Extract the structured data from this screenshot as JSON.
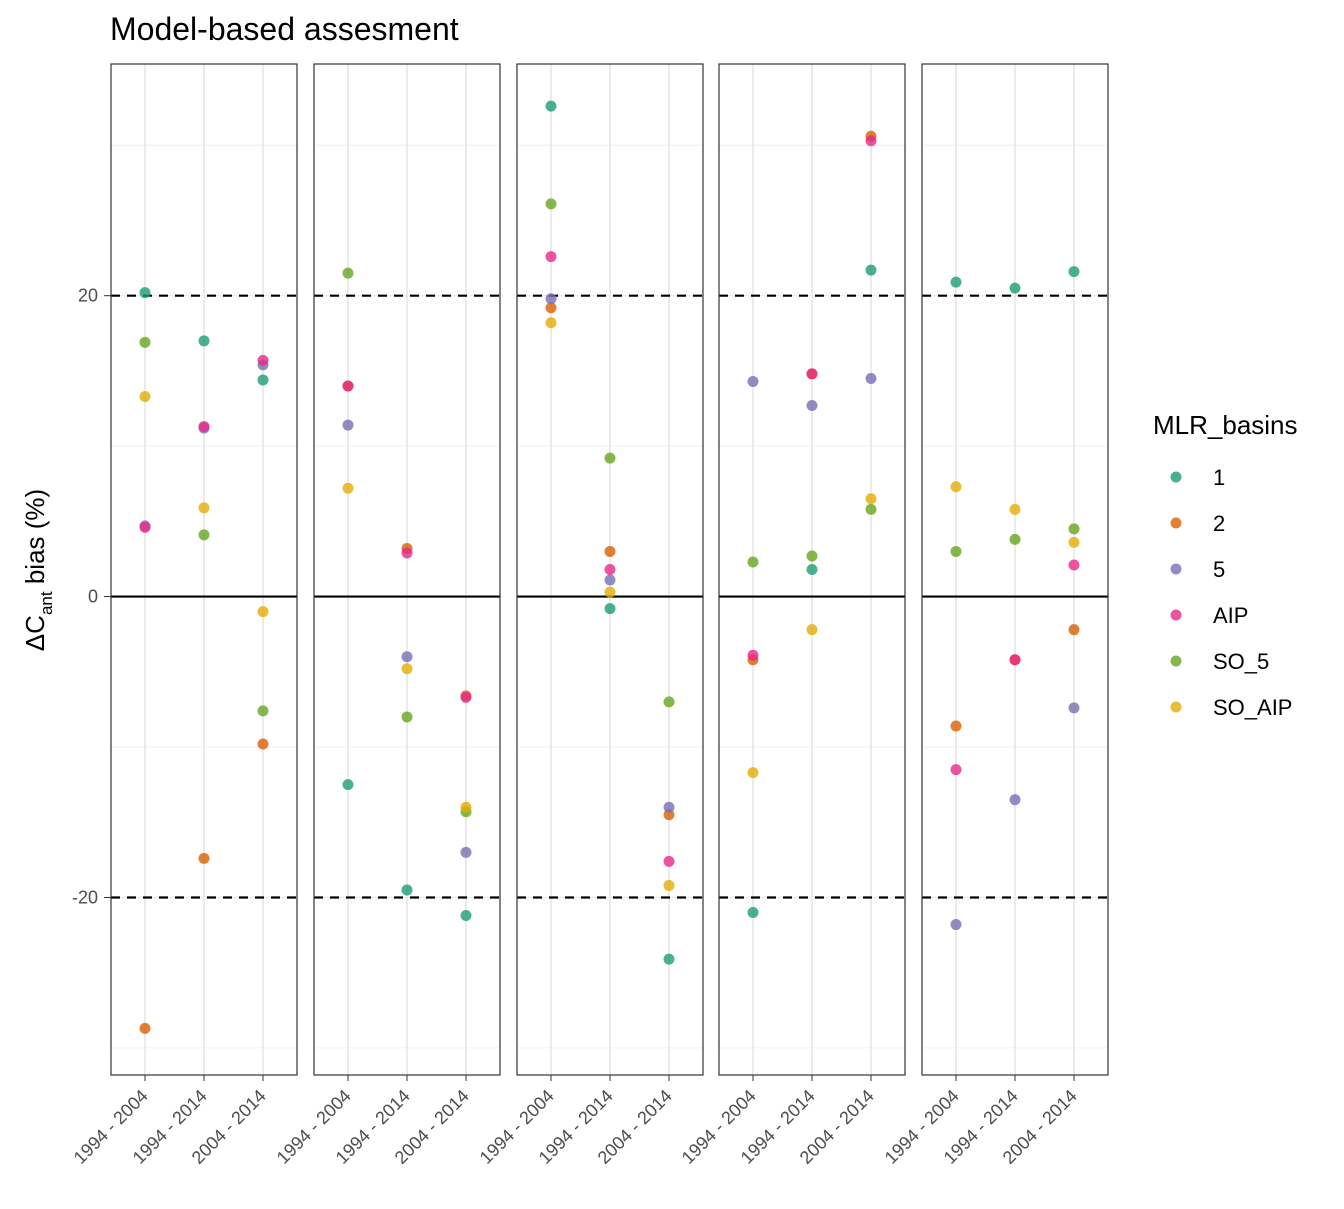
{
  "chart_data": {
    "type": "scatter",
    "title": "Model-based assesment",
    "ylabel": "ΔCant bias (%)",
    "ylabel_parts": {
      "delta": "ΔC",
      "subscript": "ant",
      "rest": " bias (%)"
    },
    "xlabel": "",
    "categories": [
      "1994 - 2004",
      "1994 - 2014",
      "2004 - 2014"
    ],
    "ylim": [
      -31.8,
      35.4
    ],
    "yticks": [
      -20,
      0,
      20
    ],
    "ytick_labels": [
      "-20",
      "0",
      "20"
    ],
    "hlines": [
      {
        "y": 0,
        "style": "solid"
      },
      {
        "y": 20,
        "style": "dashed"
      },
      {
        "y": -20,
        "style": "dashed"
      }
    ],
    "grid": true,
    "legend": {
      "title": "MLR_basins",
      "placement": "right",
      "entries": [
        {
          "name": "1",
          "color": "#1B9E77"
        },
        {
          "name": "2",
          "color": "#D95F02"
        },
        {
          "name": "5",
          "color": "#7570B3"
        },
        {
          "name": "AIP",
          "color": "#E7298A"
        },
        {
          "name": "SO_5",
          "color": "#66A61E"
        },
        {
          "name": "SO_AIP",
          "color": "#E6AB02"
        }
      ]
    },
    "panels": [
      {
        "series": [
          {
            "name": "1",
            "values": [
              20.2,
              17.0,
              14.4
            ]
          },
          {
            "name": "2",
            "values": [
              -28.7,
              -17.4,
              -9.8
            ]
          },
          {
            "name": "5",
            "values": [
              4.7,
              11.2,
              15.4
            ]
          },
          {
            "name": "AIP",
            "values": [
              4.6,
              11.3,
              15.7
            ]
          },
          {
            "name": "SO_5",
            "values": [
              16.9,
              4.1,
              -7.6
            ]
          },
          {
            "name": "SO_AIP",
            "values": [
              13.3,
              5.9,
              -1.0
            ]
          }
        ]
      },
      {
        "series": [
          {
            "name": "1",
            "values": [
              -12.5,
              -19.5,
              -21.2
            ]
          },
          {
            "name": "2",
            "values": [
              14.0,
              3.2,
              -6.6
            ]
          },
          {
            "name": "5",
            "values": [
              11.4,
              -4.0,
              -17.0
            ]
          },
          {
            "name": "AIP",
            "values": [
              14.0,
              2.9,
              -6.7
            ]
          },
          {
            "name": "SO_5",
            "values": [
              21.5,
              -8.0,
              -14.3
            ]
          },
          {
            "name": "SO_AIP",
            "values": [
              7.2,
              -4.8,
              -14.0
            ]
          }
        ]
      },
      {
        "series": [
          {
            "name": "1",
            "values": [
              32.6,
              -0.8,
              -24.1
            ]
          },
          {
            "name": "2",
            "values": [
              19.2,
              3.0,
              -14.5
            ]
          },
          {
            "name": "5",
            "values": [
              19.8,
              1.1,
              -14.0
            ]
          },
          {
            "name": "AIP",
            "values": [
              22.6,
              1.8,
              -17.6
            ]
          },
          {
            "name": "SO_5",
            "values": [
              26.1,
              9.2,
              -7.0
            ]
          },
          {
            "name": "SO_AIP",
            "values": [
              18.2,
              0.3,
              -19.2
            ]
          }
        ]
      },
      {
        "series": [
          {
            "name": "1",
            "values": [
              -21.0,
              1.8,
              21.7
            ]
          },
          {
            "name": "2",
            "values": [
              -4.2,
              14.8,
              30.6
            ]
          },
          {
            "name": "5",
            "values": [
              14.3,
              12.7,
              14.5
            ]
          },
          {
            "name": "AIP",
            "values": [
              -3.9,
              14.8,
              30.3
            ]
          },
          {
            "name": "SO_5",
            "values": [
              2.3,
              2.7,
              5.8
            ]
          },
          {
            "name": "SO_AIP",
            "values": [
              -11.7,
              -2.2,
              6.5
            ]
          }
        ]
      },
      {
        "series": [
          {
            "name": "1",
            "values": [
              20.9,
              20.5,
              21.6
            ]
          },
          {
            "name": "2",
            "values": [
              -8.6,
              -4.2,
              -2.2
            ]
          },
          {
            "name": "5",
            "values": [
              -21.8,
              -13.5,
              -7.4
            ]
          },
          {
            "name": "AIP",
            "values": [
              -11.5,
              -4.2,
              2.1
            ]
          },
          {
            "name": "SO_5",
            "values": [
              3.0,
              3.8,
              4.5
            ]
          },
          {
            "name": "SO_AIP",
            "values": [
              7.3,
              5.8,
              3.6
            ]
          }
        ]
      }
    ]
  }
}
